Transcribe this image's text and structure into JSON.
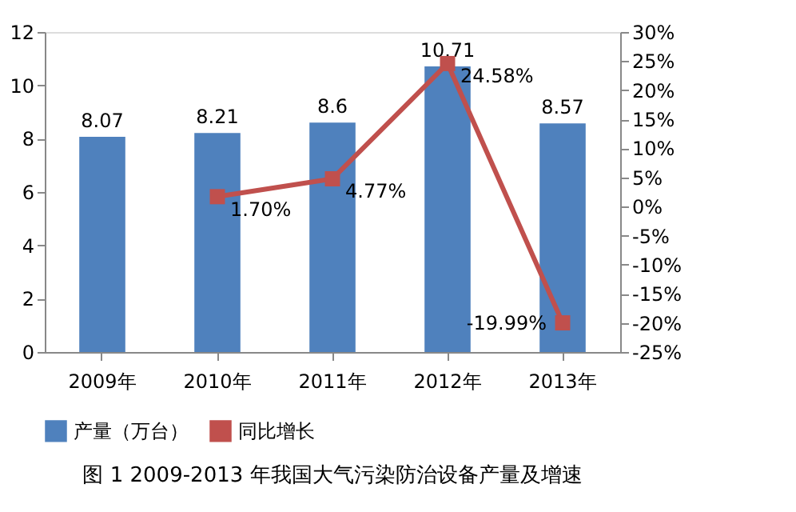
{
  "chart_data": {
    "type": "bar",
    "title": "图 1    2009-2013 年我国大气污染防治设备产量及增速",
    "categories": [
      "2009年",
      "2010年",
      "2011年",
      "2012年",
      "2013年"
    ],
    "series": [
      {
        "name": "产量（万台）",
        "color": "#4f81bd",
        "values": [
          8.07,
          8.21,
          8.6,
          10.71,
          8.57
        ],
        "value_labels": [
          "8.07",
          "8.21",
          "8.6",
          "10.71",
          "8.57"
        ]
      },
      {
        "name": "同比增长",
        "type": "line",
        "axis": "y2",
        "color": "#c0504d",
        "marker": "square",
        "values": [
          null,
          1.7,
          4.77,
          24.58,
          -19.99
        ],
        "value_labels": [
          null,
          "1.70%",
          "4.77%",
          "24.58%",
          "-19.99%"
        ]
      }
    ],
    "ylim": [
      0,
      12
    ],
    "yticks": [
      0,
      2,
      4,
      6,
      8,
      10,
      12
    ],
    "y2lim": [
      -25,
      30
    ],
    "y2ticks": [
      {
        "value": -25,
        "label": "-25%"
      },
      {
        "value": -20,
        "label": "-20%"
      },
      {
        "value": -15,
        "label": "-15%"
      },
      {
        "value": -10,
        "label": "-10%"
      },
      {
        "value": -5,
        "label": "-5%"
      },
      {
        "value": 0,
        "label": "0%"
      },
      {
        "value": 5,
        "label": "5%"
      },
      {
        "value": 10,
        "label": "10%"
      },
      {
        "value": 15,
        "label": "15%"
      },
      {
        "value": 20,
        "label": "20%"
      },
      {
        "value": 25,
        "label": "25%"
      },
      {
        "value": 30,
        "label": "30%"
      }
    ],
    "grid": false,
    "legend": "bottom"
  }
}
